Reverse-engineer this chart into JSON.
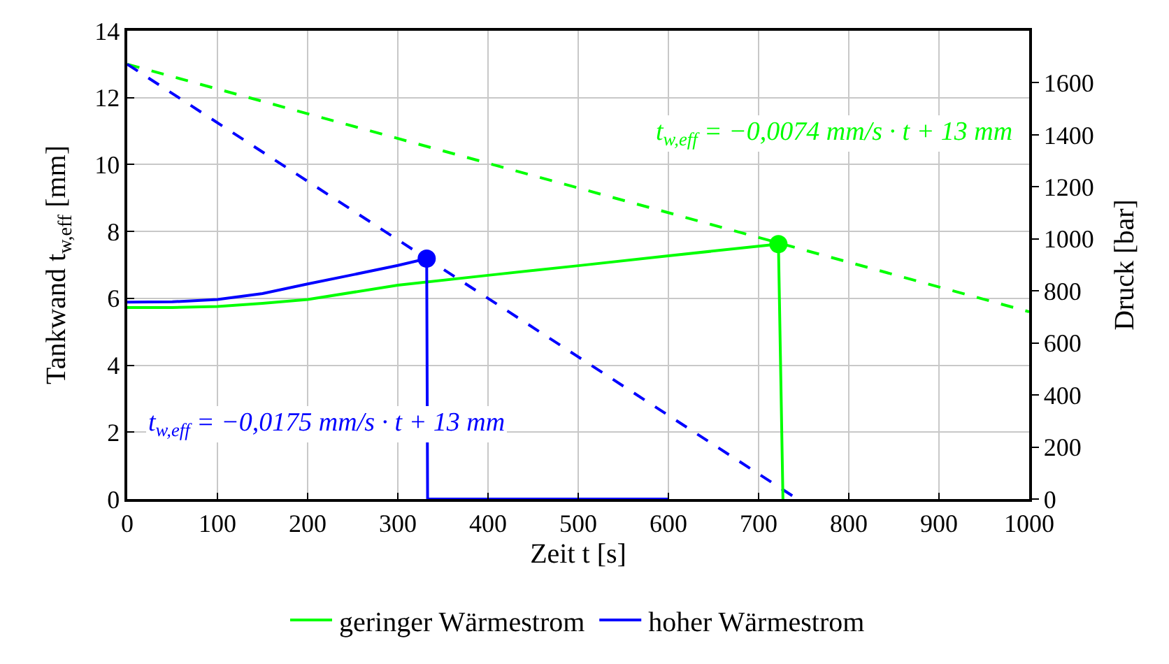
{
  "chart_data": {
    "type": "line",
    "xlabel": "Zeit t [s]",
    "ylabel": "Tankwand t$_{w,eff}$ [mm]",
    "y2label": "Druck [bar]",
    "xlim": [
      0,
      1000
    ],
    "xticks": [
      0,
      100,
      200,
      300,
      400,
      500,
      600,
      700,
      800,
      900,
      1000
    ],
    "ylim": [
      0,
      14
    ],
    "yticks": [
      0,
      2,
      4,
      6,
      8,
      10,
      12,
      14
    ],
    "y2lim": [
      0,
      1800
    ],
    "y2ticks": [
      0,
      200,
      400,
      600,
      800,
      1000,
      1200,
      1400,
      1600
    ],
    "grid": true,
    "legend": "bottom",
    "marker": "none",
    "series": [
      {
        "name": "geringer Wärmestrom",
        "color": "#00ff00",
        "axis": "y2",
        "line_style": "solid",
        "x": [
          0,
          50,
          100,
          150,
          200,
          300,
          400,
          500,
          600,
          722,
          727
        ],
        "values": [
          736,
          736,
          740,
          752,
          767,
          822,
          860,
          897,
          935,
          980,
          0
        ]
      },
      {
        "name": "hoher Wärmestrom",
        "color": "#0000ff",
        "axis": "y2",
        "line_style": "solid",
        "x": [
          0,
          50,
          100,
          150,
          200,
          250,
          300,
          332,
          333,
          600
        ],
        "values": [
          757,
          758,
          767,
          790,
          827,
          862,
          898,
          924,
          0,
          0
        ]
      },
      {
        "type": "scatter",
        "color": "#00ff00",
        "axis": "y2",
        "marker": "circle",
        "x": [
          722
        ],
        "values": [
          980
        ]
      },
      {
        "type": "scatter",
        "color": "#0000ff",
        "axis": "y2",
        "marker": "circle",
        "x": [
          332
        ],
        "values": [
          924
        ]
      },
      {
        "color": "#00ff00",
        "line_style": "dashed",
        "x": [
          0,
          1000
        ],
        "values": [
          13,
          5.6
        ]
      },
      {
        "color": "#0000ff",
        "line_style": "dashed",
        "x": [
          0,
          743
        ],
        "values": [
          13,
          0
        ]
      }
    ],
    "annotations": [
      "t$_{w,eff}$ = −0,0074 mm/s · t + 13 mm",
      "t$_{w,eff}$ = −0,0175 mm/s · t + 13 mm"
    ]
  }
}
